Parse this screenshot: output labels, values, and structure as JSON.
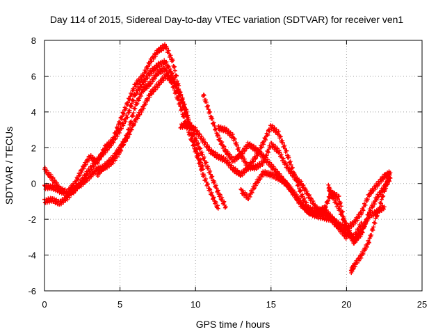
{
  "chart_data": {
    "type": "scatter",
    "title": "Day 114 of 2015, Sidereal Day-to-day VTEC variation (SDTVAR) for receiver ven1",
    "xlabel": "GPS time / hours",
    "ylabel": "SDTVAR / TECUs",
    "xlim": [
      0,
      25
    ],
    "ylim": [
      -6,
      8
    ],
    "xticks": [
      0,
      5,
      10,
      15,
      20,
      25
    ],
    "yticks": [
      -6,
      -4,
      -2,
      0,
      2,
      4,
      6,
      8
    ],
    "grid": true,
    "marker": "plus",
    "color": "#ff0000",
    "series": [
      {
        "x": [
          0.0,
          0.5,
          1.0,
          1.5,
          2.0,
          2.5,
          3.0,
          3.5,
          4.0,
          4.5,
          5.0,
          5.5,
          6.0,
          6.5,
          7.0,
          7.5,
          8.0,
          8.5,
          9.0,
          9.5,
          10.0,
          10.5
        ],
        "y": [
          0.8,
          0.3,
          -0.3,
          -0.5,
          0.0,
          0.8,
          1.5,
          1.2,
          2.0,
          2.4,
          3.5,
          4.5,
          5.5,
          6.0,
          6.8,
          7.4,
          7.7,
          6.8,
          5.0,
          3.5,
          2.0,
          0.8
        ]
      },
      {
        "x": [
          0.0,
          0.5,
          1.0,
          1.5,
          2.0,
          2.5,
          3.0,
          3.5,
          4.0,
          4.5,
          5.0,
          5.5,
          6.0,
          6.5,
          7.0,
          7.5,
          8.0,
          8.5,
          9.0,
          9.5,
          10.0,
          10.5,
          11.0,
          11.5,
          12.0
        ],
        "y": [
          -0.2,
          -0.2,
          -0.4,
          -0.6,
          -0.4,
          0.2,
          0.8,
          1.3,
          1.8,
          2.3,
          3.0,
          3.8,
          5.0,
          5.6,
          6.2,
          6.6,
          6.8,
          6.0,
          4.8,
          3.6,
          2.5,
          1.5,
          0.5,
          -0.5,
          -1.3
        ]
      },
      {
        "x": [
          0.0,
          0.5,
          1.0,
          1.5,
          2.0,
          2.5,
          3.0,
          3.5,
          4.0,
          4.5,
          5.0,
          5.5,
          6.0,
          6.5,
          7.0,
          7.5,
          8.0,
          8.5,
          9.0,
          9.5,
          10.0,
          10.5,
          11.0,
          11.5
        ],
        "y": [
          -1.0,
          -0.9,
          -1.1,
          -0.8,
          -0.3,
          0.0,
          0.4,
          0.8,
          0.9,
          1.2,
          1.8,
          2.8,
          4.3,
          5.2,
          5.6,
          6.2,
          6.4,
          5.5,
          4.3,
          3.0,
          1.8,
          0.5,
          -0.5,
          -1.4
        ]
      },
      {
        "x": [
          3.5,
          4.0,
          4.5,
          5.0,
          5.5,
          6.0,
          6.5,
          7.0,
          7.5,
          8.0,
          8.5,
          9.0,
          9.5
        ],
        "y": [
          0.5,
          1.0,
          1.4,
          2.0,
          2.6,
          3.5,
          4.2,
          5.0,
          5.5,
          6.0,
          5.8,
          5.0,
          3.8
        ]
      },
      {
        "x": [
          9.0,
          9.5,
          10.0,
          10.5,
          11.0,
          11.5,
          12.0,
          12.5,
          13.0,
          13.5,
          14.0,
          14.5,
          15.0,
          15.5,
          16.0,
          16.5,
          17.0,
          17.5,
          18.0,
          18.5,
          19.0,
          19.5,
          20.0
        ],
        "y": [
          3.2,
          3.3,
          3.0,
          2.4,
          1.8,
          1.5,
          1.3,
          0.8,
          0.5,
          0.9,
          0.9,
          1.2,
          2.2,
          1.8,
          1.0,
          0.4,
          0.0,
          -0.7,
          -1.4,
          -1.6,
          -2.0,
          -2.5,
          -3.0
        ]
      },
      {
        "x": [
          10.5,
          11.0,
          11.5,
          12.0,
          12.5,
          13.0,
          13.5,
          14.0,
          14.5,
          15.0,
          15.5,
          16.0,
          16.5,
          17.0,
          17.5,
          18.0,
          18.5,
          19.0,
          19.5,
          20.0,
          20.5,
          21.0
        ],
        "y": [
          5.0,
          3.8,
          2.6,
          1.8,
          1.3,
          1.6,
          2.2,
          1.9,
          1.5,
          1.0,
          0.5,
          0.0,
          -0.6,
          -1.2,
          -1.6,
          -1.8,
          -1.9,
          -2.0,
          -2.4,
          -2.8,
          -3.0,
          -2.2
        ]
      },
      {
        "x": [
          11.5,
          12.0,
          12.5,
          13.0,
          13.5,
          14.0,
          14.5,
          15.0,
          15.5,
          16.0,
          16.5,
          17.0,
          17.5,
          18.0,
          18.5,
          19.0,
          19.5,
          20.0,
          20.5,
          21.0,
          21.5,
          22.0,
          22.5,
          22.9
        ],
        "y": [
          3.1,
          3.0,
          2.6,
          1.6,
          0.9,
          1.5,
          2.3,
          3.2,
          2.8,
          1.8,
          0.6,
          -0.6,
          -1.4,
          -1.6,
          -1.4,
          -1.9,
          -2.3,
          -2.5,
          -2.2,
          -1.6,
          -0.6,
          -0.1,
          0.4,
          0.6
        ]
      },
      {
        "x": [
          13.0,
          13.5,
          14.0,
          14.5,
          15.0,
          15.5,
          16.0,
          16.5,
          17.0,
          17.5,
          18.0,
          18.5,
          19.0,
          19.5,
          20.0,
          20.5,
          21.0,
          21.5,
          22.0,
          22.5
        ],
        "y": [
          -0.4,
          -0.8,
          0.0,
          0.6,
          0.5,
          0.3,
          0.0,
          -0.5,
          -1.1,
          -1.6,
          -1.7,
          -1.5,
          -0.5,
          -0.8,
          -2.6,
          -3.3,
          -2.6,
          -1.8,
          -1.6,
          -1.3
        ]
      },
      {
        "x": [
          18.8,
          19.0,
          19.5,
          20.0,
          20.5,
          21.0,
          21.5,
          22.0,
          22.5,
          22.9
        ],
        "y": [
          -0.2,
          -0.6,
          -1.4,
          -2.4,
          -3.2,
          -2.8,
          -1.6,
          -0.8,
          -0.2,
          0.3
        ]
      },
      {
        "x": [
          20.3,
          20.5,
          21.0,
          21.5,
          22.0,
          22.5,
          22.8
        ],
        "y": [
          -4.9,
          -4.6,
          -4.0,
          -3.2,
          -1.8,
          -0.4,
          0.3
        ]
      }
    ]
  }
}
